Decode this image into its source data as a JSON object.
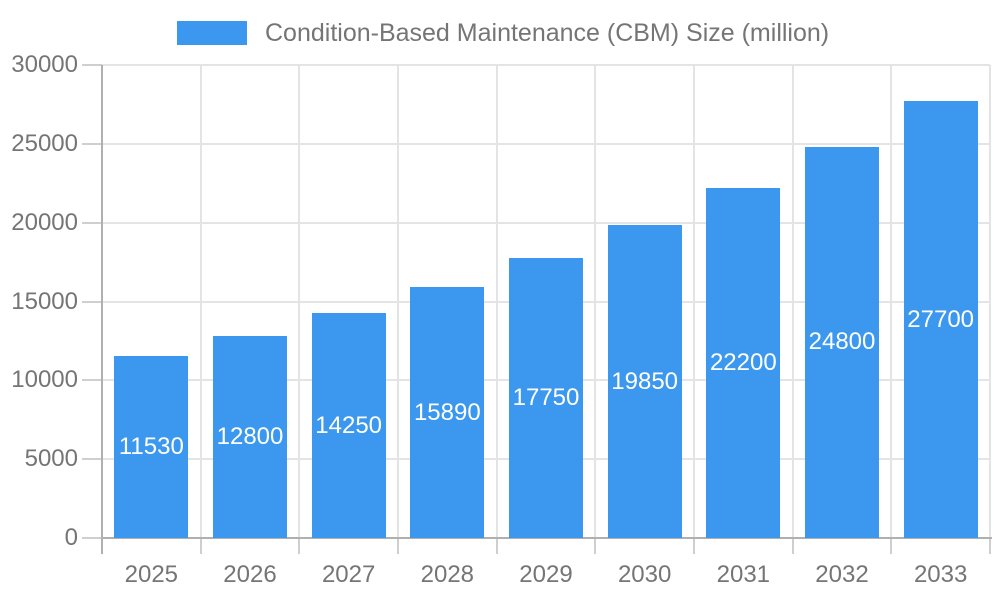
{
  "legend": {
    "label": "Condition-Based Maintenance (CBM) Size (million)",
    "swatch_color": "#3c98ee"
  },
  "colors": {
    "bar": "#3c98ee",
    "grid": "#e4e4e4",
    "axis_line": "#b0b0b0",
    "tick": "#cfcfcf",
    "axis_text": "#757575",
    "bar_label_text": "#ffffff",
    "background": "#ffffff"
  },
  "chart_data": {
    "type": "bar",
    "title": "Condition-Based Maintenance (CBM) Size (million)",
    "categories": [
      "2025",
      "2026",
      "2027",
      "2028",
      "2029",
      "2030",
      "2031",
      "2032",
      "2033"
    ],
    "values": [
      11530,
      12800,
      14250,
      15890,
      17750,
      19850,
      22200,
      24800,
      27700
    ],
    "xlabel": "",
    "ylabel": "",
    "ylim": [
      0,
      30000
    ],
    "yticks": [
      0,
      5000,
      10000,
      15000,
      20000,
      25000,
      30000
    ],
    "ytick_labels": [
      "0",
      "5000",
      "10000",
      "15000",
      "20000",
      "25000",
      "30000"
    ],
    "grid": true,
    "legend_position": "top",
    "bar_value_labels": true
  }
}
